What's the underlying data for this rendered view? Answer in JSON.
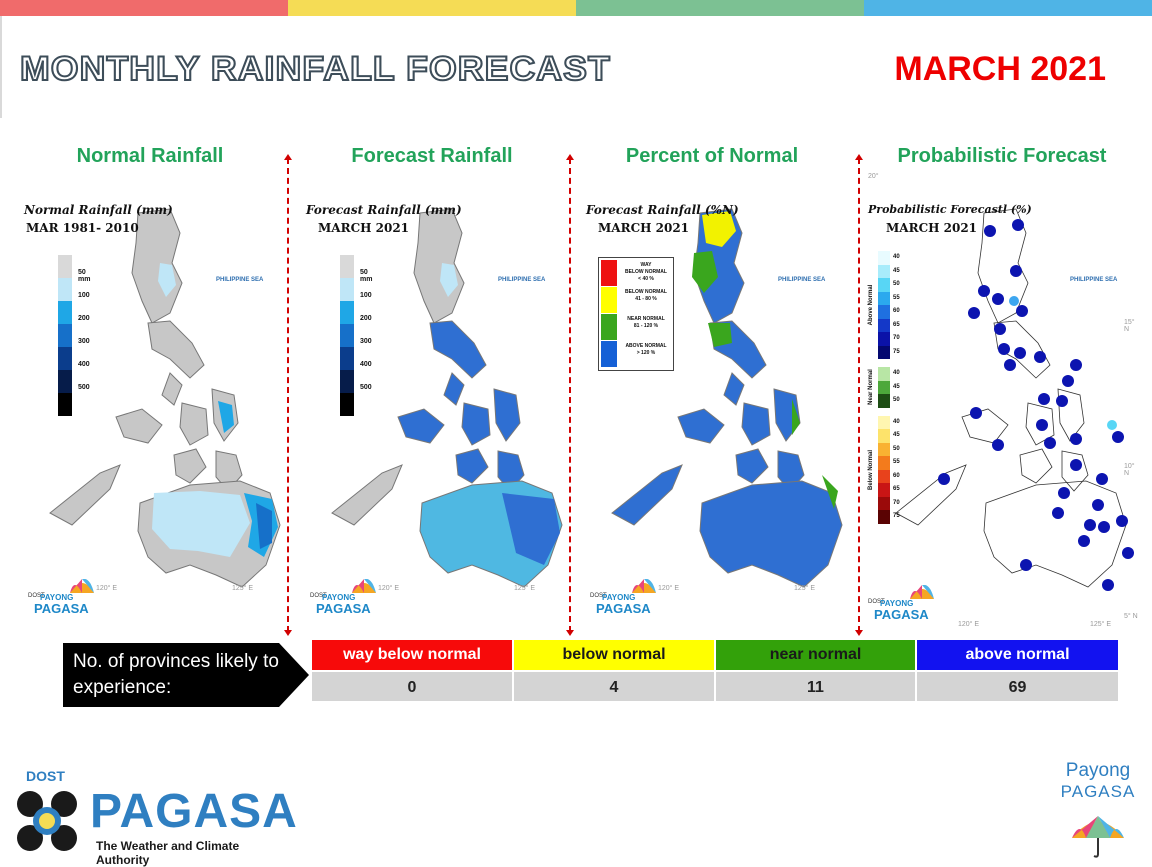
{
  "header": {
    "title": "MONTHLY RAINFALL FORECAST",
    "month": "MARCH 2021",
    "stripe_colors": [
      "#f06b6b",
      "#f5dc55",
      "#7cc193",
      "#4fb4e6"
    ]
  },
  "panels": [
    {
      "title": "Normal Rainfall",
      "map_title": "Normal Rainfall (mm)",
      "map_subtitle": "MAR 1981- 2010",
      "sea_label": "PHILIPPINE SEA",
      "legend": [
        {
          "color": "#d9d9d9",
          "label": "50 mm"
        },
        {
          "color": "#bfe6f7",
          "label": "100"
        },
        {
          "color": "#1fa7e6",
          "label": "200"
        },
        {
          "color": "#1670c9",
          "label": "300"
        },
        {
          "color": "#0b3d8c",
          "label": "400"
        },
        {
          "color": "#061c4a",
          "label": "500"
        },
        {
          "color": "#000000",
          "label": ""
        }
      ]
    },
    {
      "title": "Forecast Rainfall",
      "map_title": "Forecast Rainfall (mm)",
      "map_subtitle": "MARCH 2021",
      "sea_label": "PHILIPPINE SEA",
      "legend": [
        {
          "color": "#d9d9d9",
          "label": "50 mm"
        },
        {
          "color": "#bfe6f7",
          "label": "100"
        },
        {
          "color": "#1fa7e6",
          "label": "200"
        },
        {
          "color": "#1670c9",
          "label": "300"
        },
        {
          "color": "#0b3d8c",
          "label": "400"
        },
        {
          "color": "#061c4a",
          "label": "500"
        },
        {
          "color": "#000000",
          "label": ""
        }
      ]
    },
    {
      "title": "Percent of Normal",
      "map_title": "Forecast Rainfall (%N)",
      "map_subtitle": "MARCH 2021",
      "sea_label": "PHILIPPINE SEA",
      "legend": [
        {
          "color": "#ee1111",
          "label1": "WAY",
          "label2": "BELOW NORMAL",
          "label3": "< 40 %"
        },
        {
          "color": "#ffff00",
          "label1": "BELOW NORMAL",
          "label2": "41 - 80 %",
          "label3": ""
        },
        {
          "color": "#3aa61e",
          "label1": "NEAR NORMAL",
          "label2": "81 - 120 %",
          "label3": ""
        },
        {
          "color": "#1560d6",
          "label1": "ABOVE NORMAL",
          "label2": "> 120 %",
          "label3": ""
        }
      ]
    },
    {
      "title": "Probabilistic Forecast",
      "map_title": "Probabilistic Forecastl (%)",
      "map_subtitle": "MARCH 2021",
      "sea_label": "PHILIPPINE SEA",
      "groups": [
        {
          "name": "Above Normal",
          "values": [
            "40",
            "45",
            "50",
            "55",
            "60",
            "65",
            "70",
            "75"
          ],
          "colors": [
            "#e8fbff",
            "#a8ecfb",
            "#58d6f5",
            "#2ba9ee",
            "#1f70e0",
            "#1438c8",
            "#0b12a8",
            "#040870"
          ]
        },
        {
          "name": "Near Normal",
          "values": [
            "40",
            "45",
            "50"
          ],
          "colors": [
            "#b8e6a5",
            "#4da83b",
            "#1d4d14"
          ]
        },
        {
          "name": "Below Normal",
          "values": [
            "40",
            "45",
            "50",
            "55",
            "60",
            "65",
            "70",
            "75"
          ],
          "colors": [
            "#fff6b0",
            "#fde36b",
            "#f9b232",
            "#f37b1c",
            "#e8421c",
            "#c91515",
            "#9b0a0a",
            "#5a0303"
          ]
        }
      ],
      "lat_labels": [
        "20°",
        "15° N",
        "10° N",
        "5° N"
      ],
      "lon_labels": [
        "120° E",
        "125° E"
      ]
    }
  ],
  "map_ticks": {
    "lon": [
      "120° E",
      "125° E"
    ],
    "lat": [
      "15° N",
      "10° N"
    ]
  },
  "logo_small": {
    "dost": "DOST",
    "payong": "PAYONG",
    "pagasa": "PAGASA"
  },
  "summary": {
    "lead": "No. of provinces likely to experience:",
    "categories": [
      {
        "label": "way below normal",
        "count": "0",
        "bg": "#f70a0a",
        "fg": "#ffffff"
      },
      {
        "label": "below normal",
        "count": "4",
        "bg": "#ffff00",
        "fg": "#1a1a1a"
      },
      {
        "label": "near normal",
        "count": "11",
        "bg": "#33a10a",
        "fg": "#1a1a1a"
      },
      {
        "label": "above normal",
        "count": "69",
        "bg": "#1212f0",
        "fg": "#ffffff"
      }
    ]
  },
  "footer": {
    "dost": "DOST",
    "pagasa": "PAGASA",
    "tagline": "The Weather and Climate Authority",
    "payong_line1": "Payong",
    "payong_line2": "PAGASA"
  }
}
